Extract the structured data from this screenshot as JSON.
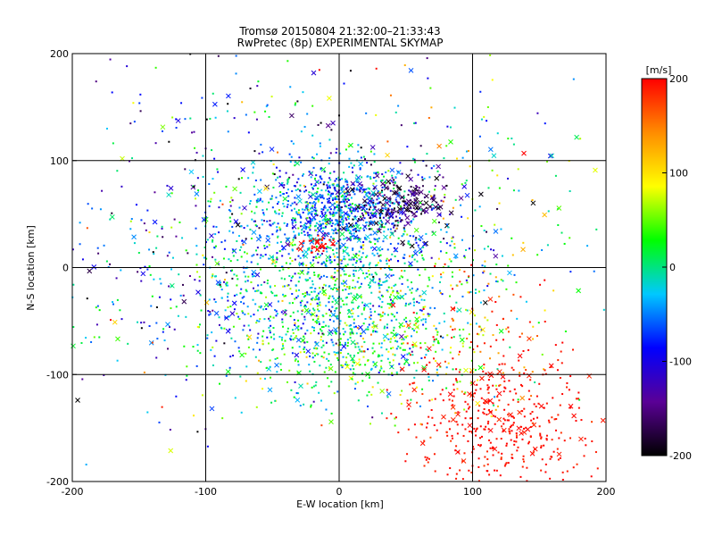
{
  "chart_data": {
    "type": "scatter",
    "title": "Tromsø 20150804 21:32:00–21:33:43",
    "subtitle": "RwPretec (8p) EXPERIMENTAL SKYMAP",
    "xlabel": "E-W location [km]",
    "ylabel": "N-S location [km]",
    "xlim": [
      -200,
      200
    ],
    "ylim": [
      -200,
      200
    ],
    "xticks": [
      -200,
      -100,
      0,
      100,
      200
    ],
    "yticks": [
      -200,
      -100,
      0,
      100,
      200
    ],
    "x_tick_labels": [
      "-200",
      "-100",
      "0",
      "100",
      "200"
    ],
    "y_tick_labels": [
      "-200",
      "-100",
      "0",
      "100",
      "200"
    ],
    "grid": true,
    "colorbar": {
      "label": "[m/s]",
      "range": [
        -200,
        200
      ],
      "ticks": [
        -200,
        -100,
        0,
        100,
        200
      ],
      "tick_labels": [
        "-200",
        "-100",
        "0",
        "100",
        "200"
      ],
      "colors": [
        "#000000",
        "#5a0096",
        "#0000ff",
        "#00c8ff",
        "#00ff00",
        "#ffff00",
        "#ff8c00",
        "#ff0000"
      ]
    },
    "marker_types": [
      "dot",
      "cross"
    ],
    "clusters": [
      {
        "center": [
          0,
          55
        ],
        "spread": [
          28,
          20
        ],
        "count": 650,
        "mean_velocity": -60,
        "velocity_spread": 40,
        "cross_fraction": 0.08
      },
      {
        "center": [
          45,
          60
        ],
        "spread": [
          18,
          15
        ],
        "count": 220,
        "mean_velocity": -170,
        "velocity_spread": 30,
        "cross_fraction": 0.3
      },
      {
        "center": [
          -10,
          5
        ],
        "spread": [
          55,
          45
        ],
        "count": 900,
        "mean_velocity": -20,
        "velocity_spread": 50,
        "cross_fraction": 0.06
      },
      {
        "center": [
          10,
          -60
        ],
        "spread": [
          45,
          35
        ],
        "count": 700,
        "mean_velocity": 10,
        "velocity_spread": 50,
        "cross_fraction": 0.06
      },
      {
        "center": [
          120,
          -150
        ],
        "spread": [
          35,
          35
        ],
        "count": 420,
        "mean_velocity": 195,
        "velocity_spread": 8,
        "cross_fraction": 0.1
      },
      {
        "center": [
          95,
          -70
        ],
        "spread": [
          35,
          45
        ],
        "count": 160,
        "mean_velocity": 160,
        "velocity_spread": 60,
        "cross_fraction": 0.05
      },
      {
        "center": [
          -110,
          -20
        ],
        "spread": [
          60,
          70
        ],
        "count": 300,
        "mean_velocity": -50,
        "velocity_spread": 80,
        "cross_fraction": 0.12
      },
      {
        "center": [
          90,
          70
        ],
        "spread": [
          60,
          60
        ],
        "count": 180,
        "mean_velocity": 0,
        "velocity_spread": 80,
        "cross_fraction": 0.1
      },
      {
        "center": [
          -60,
          120
        ],
        "spread": [
          70,
          50
        ],
        "count": 120,
        "mean_velocity": -80,
        "velocity_spread": 90,
        "cross_fraction": 0.15
      },
      {
        "center": [
          -15,
          20
        ],
        "spread": [
          6,
          4
        ],
        "count": 35,
        "mean_velocity": 200,
        "velocity_spread": 5,
        "cross_fraction": 0.3
      }
    ]
  }
}
